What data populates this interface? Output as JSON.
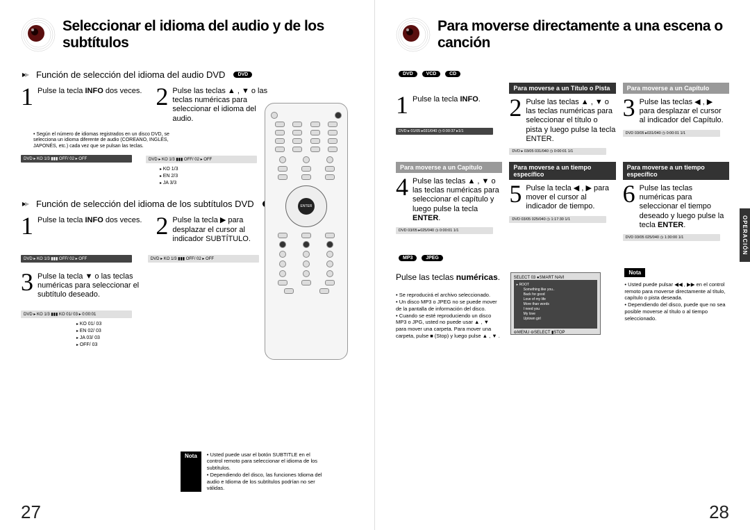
{
  "left": {
    "title": "Seleccionar el idioma del audio y de los subtítulos",
    "section1": {
      "heading": "Función de selección del idioma del audio DVD",
      "disc": "DVD",
      "step1": "Pulse la tecla <b>INFO</b> dos veces.",
      "step2": "Pulse las teclas ▲ , ▼ o las teclas numéricas para seleccionar el idioma del audio.",
      "note": "Según el número de idiomas registrados en un disco DVD, se selecciona un idioma diferente de audio (COREANO, INGLÉS, JAPONÉS, etc.) cada vez que se pulsan las teclas.",
      "bar1": "DVD ▸ KO 1/3  ▮▮▮  OFF/ 02 ▸ OFF",
      "bar2": "DVD ▸ KO 1/3  ▮▮▮  OFF/ 02 ▸ OFF",
      "langs": [
        "KO 1/3",
        "EN 2/3",
        "JA 3/3"
      ]
    },
    "section2": {
      "heading": "Función de selección del idioma de los subtítulos DVD",
      "disc": "DVD",
      "step1": "Pulse la tecla <b>INFO</b> dos veces.",
      "step2": "Pulse la tecla ▶ para desplazar el cursor al indicador SUBTÍTULO.",
      "step3": "Pulse la tecla ▼ o las teclas numéricas para seleccionar el subtítulo deseado.",
      "bar1": "DVD ▸ KO 1/3  ▮▮▮  OFF/ 02 ▸ OFF",
      "bar2": "DVD ▸ KO 1/3  ▮▮▮  OFF/ 02 ▸ OFF",
      "bar3": "DVD ▸ KO 1/3  ▮▮▮  KO 01/ 03 ▸ 0:00:01",
      "langs": [
        "KO 01/ 03",
        "EN 02/ 03",
        "JA 03/ 03",
        "OFF/ 03"
      ]
    },
    "nota": {
      "label": "Nota",
      "items": [
        "Usted puede usar el botón SUBTITLE en el control remoto para seleccionar el idioma de los subtítulos.",
        "Dependiendo del disco, las funciones Idioma del audio e Idioma de los subtítulos podrían no ser válidas."
      ]
    },
    "pageNum": "27"
  },
  "right": {
    "title": "Para moverse directamente a una escena o canción",
    "discs": [
      "DVD",
      "VCD",
      "CD"
    ],
    "tab": "OPERACIÓN",
    "row1": {
      "c1": {
        "hdr": "",
        "step": "1",
        "text": "Pulse la tecla <b>INFO</b>."
      },
      "c2": {
        "hdr": "Para moverse a un Título o Pista",
        "step": "2",
        "text": "Pulse las teclas ▲ , ▼ o las teclas numéricas para seleccionar el título o pista y luego pulse la tecla ENTER."
      },
      "c3": {
        "hdr": "Para moverse a un Capítulo",
        "step": "3",
        "text": "Pulse las teclas ◀ , ▶ para desplazar el cursor al indicador del Capítulo."
      },
      "bar1": "DVD ▸ 01/05  ▸031/040  ◷ 0:00:37  ▸1/1",
      "bar2": "DVD ▸ 03/05  031/040  ◷ 0:00:01  1/1",
      "bar3": "DVD  03/05  ▸031/040  ◷ 0:00:01  1/1"
    },
    "row2": {
      "c1": {
        "hdr": "Para moverse a un Capítulo",
        "step": "4",
        "text": "Pulse las teclas ▲ , ▼ o las teclas numéricas para seleccionar el capítulo y luego pulse la tecla <b>ENTER</b>."
      },
      "c2": {
        "hdr": "Para moverse a un tiempo específico",
        "step": "5",
        "text": "Pulse la tecla ◀ , ▶ para mover el cursor al indicador de tiempo."
      },
      "c3": {
        "hdr": "Para moverse a un tiempo específico",
        "step": "6",
        "text": "Pulse las teclas numéricas para seleccionar el tiempo deseado y luego pulse la tecla <b>ENTER</b>."
      },
      "bar1": "DVD  03/05  ▸025/040  ◷ 0:00:01  1/1",
      "bar2": "DVD  03/05  025/040  ◷ 1:17:30  1/1",
      "bar3": "DVD  03/05  025/040  ◷ 1:30:00  1/1"
    },
    "lower": {
      "discs": [
        "MP3",
        "JPEG"
      ],
      "stepText": "Pulse las teclas <b>numéricas</b>.",
      "notes": [
        "Se reproducirá el archivo seleccionado.",
        "Un disco MP3 o JPEG no se puede mover de la pantalla de información del disco.",
        "Cuando se esté reproduciendo un disco MP3 o JPG, usted no puede usar ▲ , ▼ para mover una carpeta. Para mover una carpeta, pulse ■ (Stop) y luego pulse ▲ , ▼ ."
      ],
      "screen": {
        "topbar": "SELECT   03                ●SMART NAVI",
        "folder": "▸ ROOT",
        "items": [
          "Something like you..",
          "Back for good",
          "Love of my life",
          "More than words",
          "I need you",
          "My love",
          "Uptown girl"
        ],
        "footer": "⊖MENU   ⊖SELECT   ▮STOP"
      },
      "nota": {
        "label": "Nota",
        "items": [
          "Usted puede pulsar ◀◀ , ▶▶ en el control remoto para moverse directamente al título, capítulo o pista deseada.",
          "Dependiendo del disco, puede que no sea posible moverse al título o al tiempo seleccionado."
        ]
      }
    },
    "pageNum": "28"
  },
  "colors": {
    "black": "#000000",
    "darkgrey": "#333333",
    "midgrey": "#999999",
    "bar": "#cccccc"
  }
}
